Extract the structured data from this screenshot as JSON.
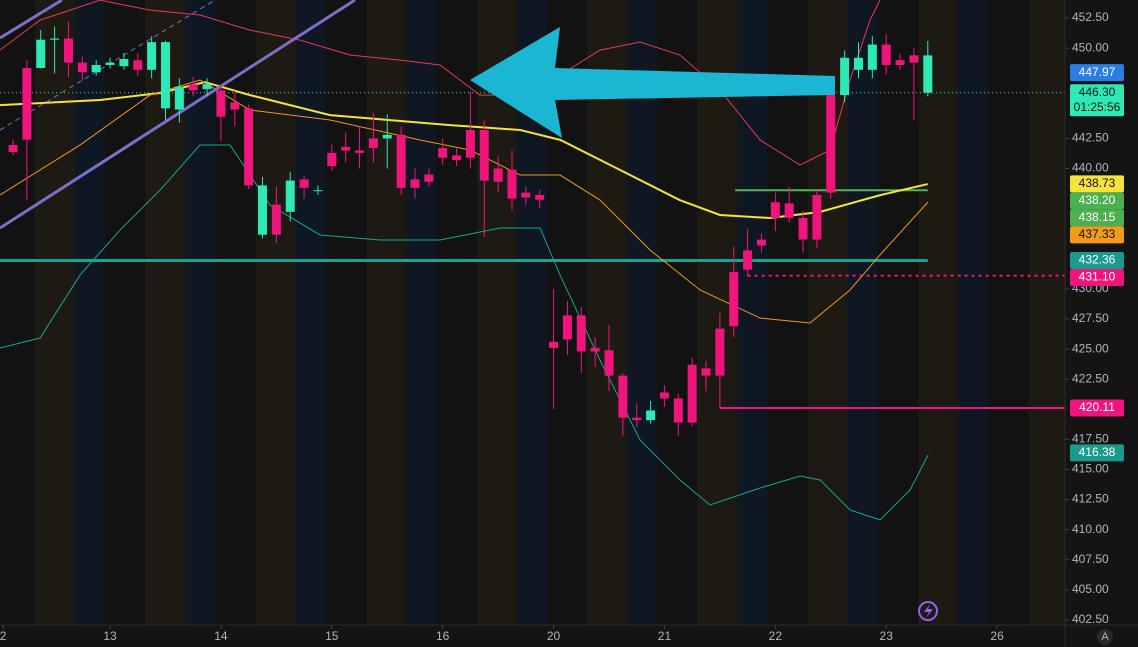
{
  "chart_data": {
    "type": "candlestick",
    "up_color": "#2ee8b5",
    "down_color": "#f0157c",
    "xlim": [
      -0.94,
      75.9
    ],
    "ylim": [
      402.08,
      454.0
    ],
    "xticks": [
      {
        "value": -0.72,
        "label": "2"
      },
      {
        "value": 7,
        "label": "13"
      },
      {
        "value": 15,
        "label": "14"
      },
      {
        "value": 23,
        "label": "15"
      },
      {
        "value": 31,
        "label": "16"
      },
      {
        "value": 39,
        "label": "20"
      },
      {
        "value": 47,
        "label": "21"
      },
      {
        "value": 55,
        "label": "22"
      },
      {
        "value": 63,
        "label": "23"
      },
      {
        "value": 71,
        "label": "26"
      }
    ],
    "yticks": [
      {
        "value": 452.5,
        "label": "452.50"
      },
      {
        "value": 450,
        "label": "450.00"
      },
      {
        "value": 442.5,
        "label": "442.50"
      },
      {
        "value": 440,
        "label": "440.00"
      },
      {
        "value": 430,
        "label": "430.00"
      },
      {
        "value": 427.5,
        "label": "427.50"
      },
      {
        "value": 425,
        "label": "425.00"
      },
      {
        "value": 422.5,
        "label": "422.50"
      },
      {
        "value": 417.5,
        "label": "417.50"
      },
      {
        "value": 415,
        "label": "415.00"
      },
      {
        "value": 412.5,
        "label": "412.50"
      },
      {
        "value": 410,
        "label": "410.00"
      },
      {
        "value": 407.5,
        "label": "407.50"
      },
      {
        "value": 405,
        "label": "405.00"
      },
      {
        "value": 402.5,
        "label": "402.50"
      }
    ],
    "open": [
      441.95,
      448.35,
      448.35,
      450.7,
      450.8,
      448.8,
      448.0,
      448.6,
      448.5,
      449.0,
      448.2,
      445.0,
      444.9,
      447.0,
      446.6,
      446.5,
      445.5,
      445.0,
      434.5,
      437.0,
      436.4,
      439.1,
      438.2,
      441.3,
      441.8,
      441.5,
      442.5,
      442.5,
      442.8,
      439.1,
      439.5,
      441.7,
      441.1,
      443.2,
      443.2,
      440.0,
      439.9,
      438.0,
      437.8,
      425.6,
      427.8,
      427.8,
      425.1,
      424.9,
      422.8,
      419.3,
      419.1,
      421.4,
      420.9,
      423.7,
      423.4,
      426.7,
      431.4,
      433.2,
      434.1,
      437.2,
      437.1,
      435.9,
      437.8,
      446.1,
      446.1,
      448.2,
      448.2,
      450.3,
      449.0,
      449.4,
      446.3
    ],
    "high": [
      442.4,
      449.0,
      451.5,
      451.8,
      452.2,
      449.3,
      449.0,
      449.2,
      449.6,
      449.6,
      451.0,
      450.6,
      447.5,
      447.6,
      447.5,
      447.0,
      446.5,
      445.3,
      439.3,
      438.5,
      439.7,
      439.4,
      438.6,
      442.0,
      443.0,
      443.5,
      444.6,
      444.5,
      443.5,
      440.0,
      440.0,
      442.5,
      441.8,
      446.4,
      444.0,
      441.0,
      441.5,
      438.5,
      438.2,
      430.0,
      429.0,
      428.5,
      426.0,
      427.0,
      423.0,
      420.5,
      420.7,
      422.0,
      421.3,
      424.3,
      424.0,
      428.0,
      433.5,
      435.0,
      434.6,
      438.0,
      438.5,
      436.5,
      438.2,
      447.1,
      449.8,
      450.5,
      451.0,
      451.2,
      449.5,
      450.0,
      450.6
    ],
    "low": [
      441.1,
      437.4,
      448.3,
      447.9,
      447.6,
      447.3,
      447.7,
      448.3,
      448.2,
      447.7,
      447.5,
      444.0,
      443.8,
      446.0,
      446.0,
      442.3,
      443.5,
      438.3,
      434.2,
      433.8,
      435.6,
      437.5,
      437.8,
      439.8,
      440.5,
      440.0,
      440.5,
      440.0,
      437.8,
      437.5,
      438.5,
      440.3,
      440.2,
      440.0,
      434.3,
      438.0,
      436.5,
      437.0,
      436.7,
      420.0,
      424.5,
      423.0,
      423.5,
      421.5,
      417.8,
      418.5,
      418.8,
      420.2,
      417.8,
      418.6,
      421.5,
      420.1,
      426.0,
      431.0,
      433.0,
      434.8,
      435.5,
      433.0,
      433.4,
      437.5,
      445.5,
      447.5,
      447.5,
      447.8,
      448.2,
      444.0,
      446.0
    ],
    "close": [
      441.37,
      442.4,
      450.7,
      450.8,
      448.8,
      448.0,
      448.6,
      448.8,
      449.1,
      448.2,
      450.5,
      450.5,
      446.8,
      446.5,
      447.0,
      444.3,
      444.9,
      438.6,
      438.6,
      434.5,
      439.0,
      438.4,
      438.2,
      440.2,
      441.5,
      441.3,
      441.7,
      442.8,
      438.4,
      438.4,
      438.9,
      440.9,
      440.7,
      440.9,
      439.0,
      438.9,
      437.5,
      437.6,
      437.4,
      425.1,
      425.8,
      424.8,
      424.8,
      422.8,
      419.3,
      419.1,
      419.9,
      420.9,
      418.9,
      418.9,
      422.8,
      422.8,
      426.9,
      431.6,
      433.6,
      435.9,
      435.9,
      434.1,
      434.1,
      438.0,
      449.2,
      449.2,
      450.3,
      448.6,
      448.6,
      448.8,
      449.4
    ],
    "lines": [
      {
        "color": "#f5e33a",
        "width": 2,
        "x": [
          -0.94,
          6.28,
          10.6,
          13.85,
          17.1,
          22.87,
          31.53,
          36.6,
          39.5,
          43.8,
          48.1,
          51.0,
          54.6,
          58.2,
          62.6,
          66.0
        ],
        "values": [
          445.27,
          445.69,
          446.27,
          447.18,
          446.1,
          444.44,
          443.61,
          443.2,
          442.37,
          439.88,
          437.38,
          436.14,
          435.89,
          436.39,
          437.8,
          438.71
        ]
      },
      {
        "color": "#f0961e",
        "width": 1,
        "x": [
          -0.94,
          4.83,
          9.88,
          13.49,
          17.1,
          22.87,
          29.37,
          32.97,
          36.58,
          39.47,
          42.35,
          45.96,
          49.57,
          53.9,
          57.5,
          60.39,
          62.55,
          66.02
        ],
        "values": [
          437.8,
          441.95,
          446.1,
          447.35,
          444.86,
          444.03,
          442.37,
          441.54,
          439.46,
          439.46,
          437.38,
          433.23,
          429.91,
          427.58,
          427.17,
          429.91,
          432.82,
          437.22
        ]
      },
      {
        "color": "#e8394c",
        "width": 1,
        "x": [
          -0.94,
          1.95,
          6.28,
          9.88,
          13.49,
          17.1,
          20.71,
          24.31,
          27.92,
          30.81,
          33.69,
          36.58,
          39.47,
          42.35,
          45.24,
          48.12,
          51.01,
          53.9,
          56.78,
          58.95,
          60.39,
          61.83,
          62.55
        ],
        "values": [
          449.84,
          452.33,
          453.99,
          453.16,
          452.75,
          451.5,
          450.67,
          449.43,
          449.01,
          448.6,
          446.1,
          446.1,
          447.77,
          449.84,
          450.51,
          449.43,
          446.52,
          442.37,
          440.29,
          441.54,
          447.35,
          452.33,
          453.99
        ]
      },
      {
        "color": "#17a596",
        "width": 1,
        "x": [
          -0.94,
          1.95,
          4.83,
          7.72,
          10.61,
          13.49,
          15.66,
          18.54,
          22.15,
          26.48,
          30.81,
          35.14,
          38.02,
          39.47,
          42.35,
          45.24,
          48.12,
          50.29,
          53.9,
          56.78,
          58.23,
          60.39,
          62.55,
          64.72,
          66.02
        ],
        "values": [
          425.09,
          425.92,
          431.15,
          434.89,
          438.21,
          441.95,
          441.95,
          436.97,
          434.48,
          434.06,
          434.06,
          435.06,
          435.06,
          431.15,
          424.09,
          417.45,
          414.13,
          412.05,
          413.46,
          414.46,
          414.13,
          411.64,
          410.81,
          413.3,
          416.2
        ]
      }
    ],
    "levels": [
      {
        "value": 432.36,
        "start": -0.94,
        "end": 66,
        "color": "#16a493",
        "width": 3,
        "dash": false
      },
      {
        "value": 438.2,
        "start": 52.1,
        "end": 66,
        "color": "#52b45a",
        "width": 2,
        "dash": false
      },
      {
        "value": 431.1,
        "start": 53,
        "end": 75.9,
        "color": "#f0157c",
        "width": 2,
        "dash": true
      },
      {
        "value": 420.11,
        "start": 51,
        "end": 75.9,
        "color": "#f0157c",
        "width": 2,
        "dash": false
      },
      {
        "value": 446.3,
        "start": -0.94,
        "end": 75.9,
        "color": "#2ee8b5",
        "width": 1,
        "dash": true
      }
    ],
    "price_labels": [
      {
        "value": 447.97,
        "label": "447.97",
        "color": "#2a7de1",
        "text_color": "#ffffff"
      },
      {
        "value": 446.3,
        "label": "446.30",
        "color": "#2ee8b5",
        "text_color": "#0a1a14"
      },
      {
        "value": 438.73,
        "label": "438.73",
        "color": "#f5e33a",
        "text_color": "#111111"
      },
      {
        "value": 438.2,
        "label": "438.20",
        "color": "#4caf50",
        "text_color": "#ffffff"
      },
      {
        "value": 438.15,
        "label": "438.15",
        "color": "#4caf50",
        "text_color": "#ffffff"
      },
      {
        "value": 437.33,
        "label": "437.33",
        "color": "#f39a1a",
        "text_color": "#111111"
      },
      {
        "value": 432.36,
        "label": "432.36",
        "color": "#1a9b8d",
        "text_color": "#ffffff"
      },
      {
        "value": 431.1,
        "label": "431.10",
        "color": "#f0157c",
        "text_color": "#ffffff"
      },
      {
        "value": 420.11,
        "label": "420.11",
        "color": "#f0157c",
        "text_color": "#ffffff"
      },
      {
        "value": 416.38,
        "label": "416.38",
        "color": "#1a9b8d",
        "text_color": "#ffffff"
      }
    ],
    "countdown": "01:25:56",
    "scale_button": "A"
  }
}
